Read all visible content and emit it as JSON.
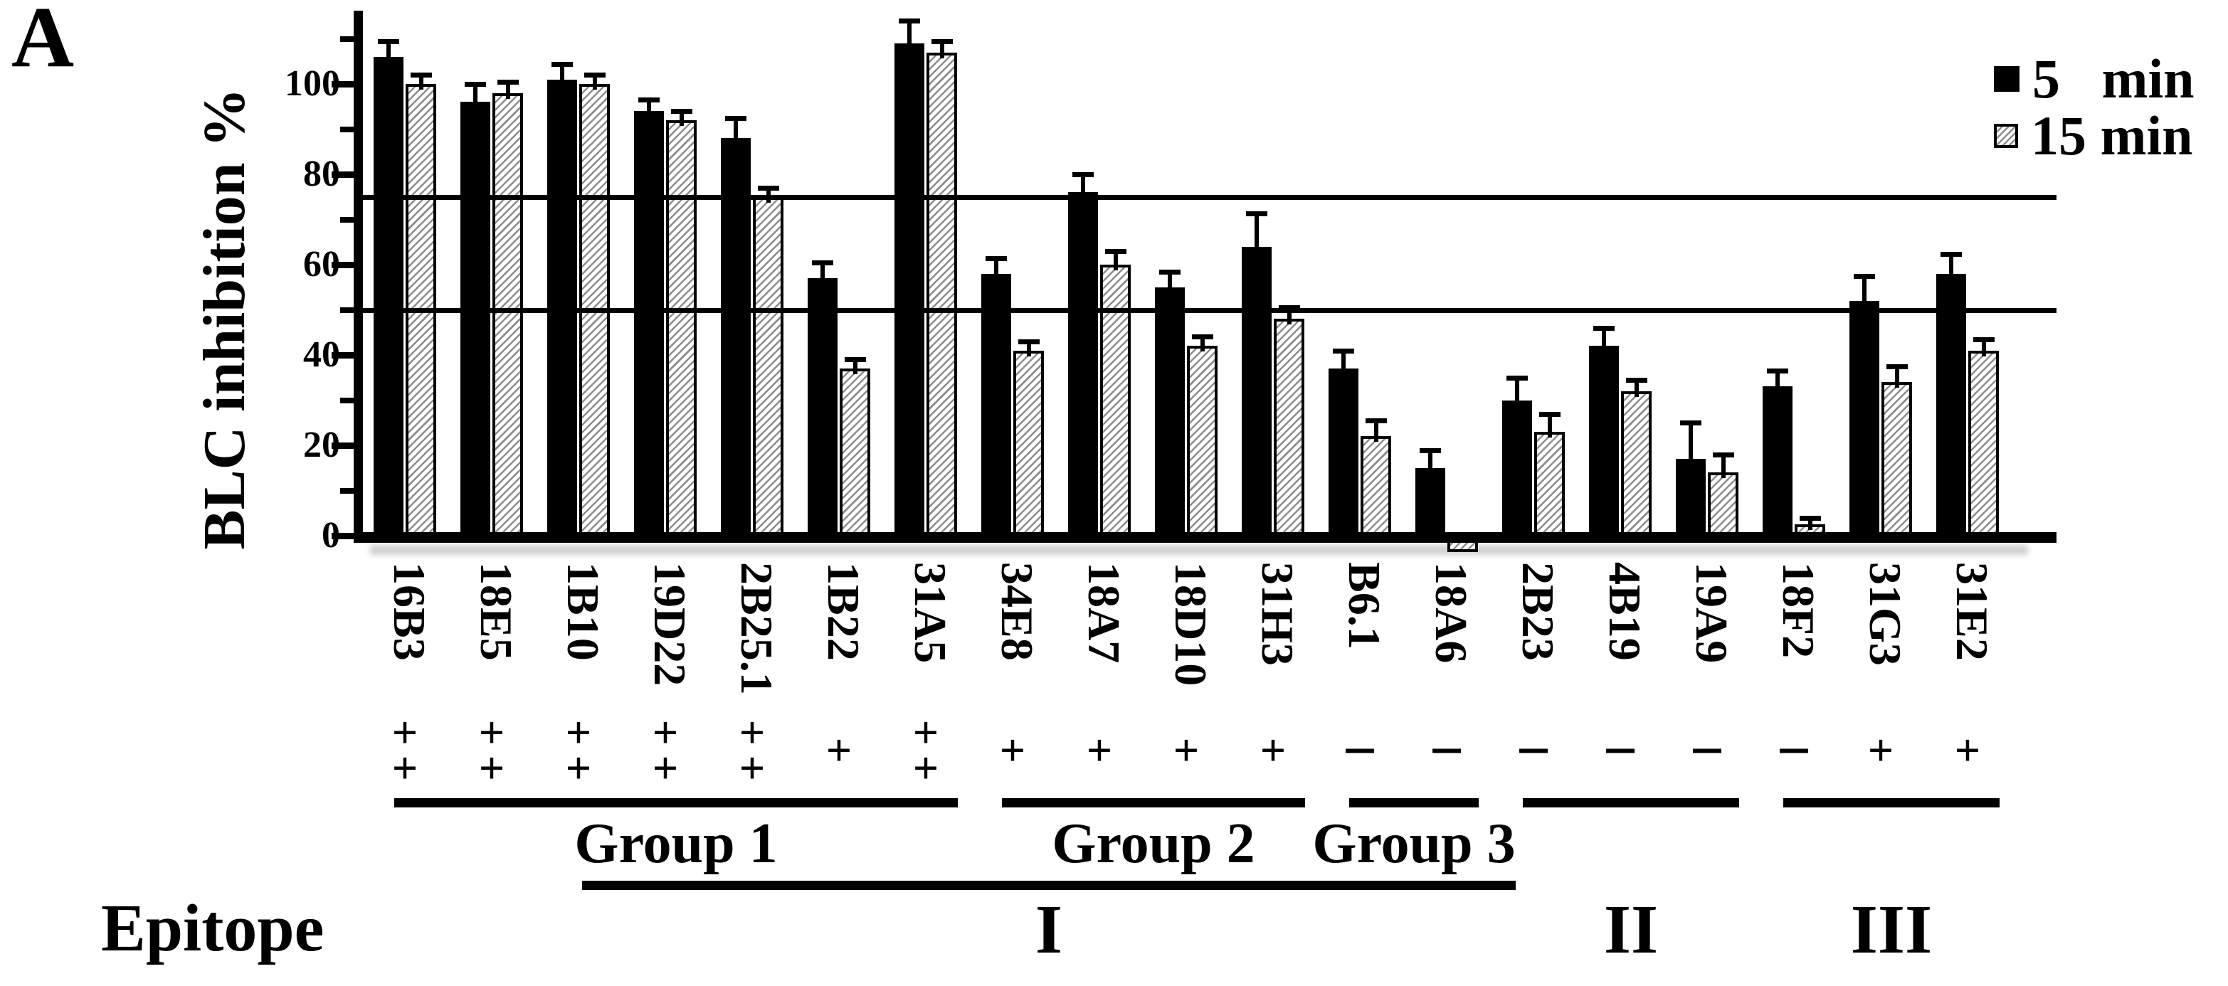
{
  "panel_label": "A",
  "colors": {
    "foreground": "#000000",
    "background": "#ffffff",
    "hatch_line": "#8c8c8c"
  },
  "legend": [
    {
      "label": "5   min",
      "marker": "solid-black-square"
    },
    {
      "label": "15 min",
      "marker": "diagonal-hatch-square"
    }
  ],
  "epitope_row_label": "Epitope",
  "chart_data": {
    "type": "bar",
    "title": "",
    "xlabel": "",
    "ylabel": "BLC inhibition %",
    "ylim": [
      -5,
      116
    ],
    "yticks": [
      0,
      20,
      40,
      60,
      80,
      100
    ],
    "minor_yticks": [
      10,
      30,
      50,
      70,
      90,
      110
    ],
    "reference_lines": [
      50,
      75
    ],
    "grid": "off",
    "legend_position": "top-right",
    "categories": [
      "16B3",
      "18E5",
      "1B10",
      "19D22",
      "2B25.1",
      "1B22",
      "31A5",
      "34E8",
      "18A7",
      "18D10",
      "31H3",
      "B6.1",
      "18A6",
      "2B23",
      "4B19",
      "19A9",
      "18F2",
      "31G3",
      "31E2"
    ],
    "series": [
      {
        "name": "5 min",
        "style": "solid-black",
        "values": [
          106,
          96,
          101,
          94,
          88,
          57,
          109,
          58,
          76,
          55,
          64,
          37,
          15,
          30,
          42,
          17,
          33,
          52,
          58
        ],
        "errors": [
          3,
          3.5,
          3,
          2,
          4,
          3,
          4.5,
          3,
          3.5,
          3,
          7,
          3.5,
          3.5,
          4.5,
          3.5,
          7.5,
          3,
          5,
          4
        ]
      },
      {
        "name": "15 min",
        "style": "diagonal-hatch",
        "values": [
          100,
          98,
          100,
          92,
          75,
          37,
          107,
          41,
          60,
          42,
          48,
          22,
          -2,
          23,
          32,
          14,
          2.5,
          34,
          41
        ],
        "errors": [
          1.5,
          2,
          1.5,
          1.5,
          1.5,
          1.5,
          2,
          1.5,
          2.5,
          1.5,
          2,
          3,
          0,
          3.5,
          2,
          3.5,
          1,
          3,
          2
        ]
      }
    ],
    "cross_blocking_signs": [
      "++",
      "++",
      "++",
      "++",
      "++",
      "+",
      "++",
      "+",
      "+",
      "+",
      "+",
      "-",
      "-",
      "-",
      "-",
      "-",
      "-",
      "+",
      "+"
    ],
    "group_brackets": [
      {
        "label": "Group 1",
        "from": 0,
        "to": 6
      },
      {
        "label": "Group 2",
        "from": 7,
        "to": 10
      },
      {
        "label": "Group 3",
        "from": 11,
        "to": 12
      },
      {
        "label": "",
        "from": 13,
        "to": 15
      },
      {
        "label": "",
        "from": 16,
        "to": 18
      }
    ],
    "epitope_brackets": [
      {
        "label": "I",
        "categories": [
          "1B10",
          "19D22",
          "2B25.1",
          "1B22",
          "31A5",
          "34E8",
          "18A7",
          "18D10",
          "31H3",
          "B6.1",
          "18A6"
        ],
        "own_line": true
      },
      {
        "label": "II",
        "categories": [
          "2B23",
          "4B19",
          "19A9"
        ],
        "own_line": false
      },
      {
        "label": "III",
        "categories": [
          "18F2",
          "31G3",
          "31E2"
        ],
        "own_line": false
      }
    ]
  }
}
